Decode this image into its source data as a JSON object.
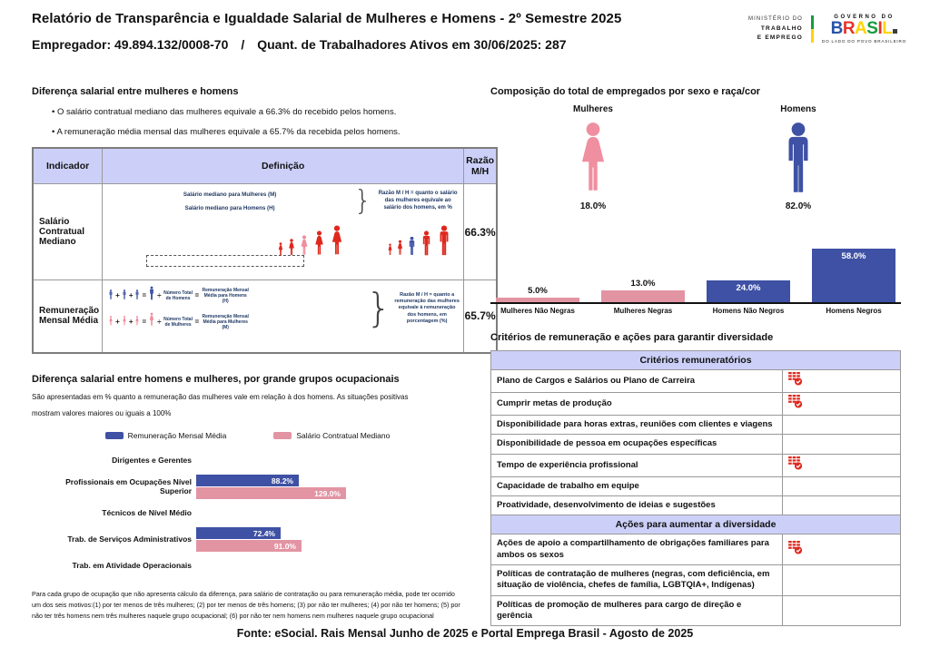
{
  "header": {
    "title_line1": "Relatório de Transparência e Igualdade Salarial de Mulheres e Homens - 2º Semestre 2025",
    "title_line2": "Empregador: 49.894.132/0008-70 / Quant. de Trabalhadores Ativos em 30/06/2025: 287",
    "ministry_line1": "MINISTÉRIO DO",
    "ministry_line2": "TRABALHO",
    "ministry_line3": "E EMPREGO",
    "gov_top": "GOVERNO DO",
    "gov_name": "BRASIL",
    "gov_tagline": "DO LADO DO POVO BRASILEIRO"
  },
  "palette": {
    "blue": "#3E51A4",
    "pink_bar": "#E294A3",
    "pink_icon": "#EF8FA0",
    "red": "#DF281E",
    "navy": "#1F3864",
    "lavender": "#CCD0F8",
    "gov_colors": [
      "#2853A8",
      "#E6332A",
      "#FFD400",
      "#169B3E",
      "#E6332A",
      "#FFD400"
    ]
  },
  "salary_gap": {
    "title": "Diferença salarial entre mulheres e homens",
    "bullets": [
      "O salário contratual mediano das mulheres equivale a 66.3% do recebido pelos homens.",
      "A remuneração média mensal das mulheres equivale a 65.7% da recebida pelos homens."
    ],
    "table": {
      "headers": [
        "Indicador",
        "Definição",
        "Razão M/H"
      ],
      "rows": [
        {
          "indicator": "Salário Contratual Mediano",
          "def_line1": "Salário mediano para Mulheres (M)",
          "def_line2": "Salário mediano para Homens (H)",
          "note": "Razão M / H = quanto o salário das mulheres equivale ao salário dos homens, em %",
          "ratio": "66.3%"
        },
        {
          "indicator": "Remuneração Mensal Média",
          "num_label_men": "Número Total de Homens",
          "result_men": "Remuneração Mensal Média para Homens (H)",
          "num_label_women": "Número Total de Mulheres",
          "result_women": "Remuneração Mensal Média para Mulheres (M)",
          "note": "Razão M / H = quanto a remuneração das mulheres equivale à remuneração dos homens, em porcentagem (%)",
          "ratio": "65.7%"
        }
      ]
    }
  },
  "composition": {
    "title": "Composição do total de empregados por sexo e raça/cor",
    "female_label": "Mulheres",
    "female_pct": "18.0%",
    "male_label": "Homens",
    "male_pct": "82.0%"
  },
  "occupational": {
    "title": "Diferença salarial entre homens e mulheres, por grande grupos ocupacionais",
    "subtitle_line1": "São apresentadas em % quanto a remuneração das mulheres vale em relação à dos homens. As situações positivas",
    "subtitle_line2": "mostram valores maiores ou iguais a 100%",
    "footnote": "Para cada grupo de ocupação que não apresenta cálculo da diferença, para salário de contratação ou para remuneração média, pode ter ocorrido um dos seis motivos:(1) por ter menos de três mulheres; (2) por ter menos de três homens; (3) por não ter mulheres; (4) por não ter homens; (5) por não ter três homens nem três mulheres naquele grupo ocupacional; (6) por não ter nem homens nem mulheres naquele grupo ocupacional"
  },
  "criteria": {
    "title": "Critérios de remuneração e ações para garantir diversidade",
    "sections": [
      {
        "title": "Critérios remuneratórios",
        "rows": [
          {
            "label": "Plano de Cargos e Salários ou Plano de Carreira",
            "checked": true
          },
          {
            "label": "Cumprir metas de produção",
            "checked": true
          },
          {
            "label": "Disponibilidade para horas extras, reuniões com clientes e viagens",
            "checked": false
          },
          {
            "label": "Disponibilidade de pessoa em ocupações específicas",
            "checked": false
          },
          {
            "label": "Tempo de experiência profissional",
            "checked": true
          },
          {
            "label": "Capacidade de trabalho em equipe",
            "checked": false
          },
          {
            "label": "Proatividade, desenvolvimento de ideias e sugestões",
            "checked": false
          }
        ]
      },
      {
        "title": "Ações para aumentar a diversidade",
        "rows": [
          {
            "label": "Ações de apoio a compartilhamento de obrigações familiares para ambos os sexos",
            "checked": true
          },
          {
            "label": "Políticas de contratação de mulheres (negras, com deficiência, em situação de violência, chefes de família, LGBTQIA+, Indígenas)",
            "checked": false
          },
          {
            "label": "Políticas de promoção de mulheres para cargo de direção e gerência",
            "checked": false
          }
        ]
      }
    ]
  },
  "chart_data": [
    {
      "type": "bar",
      "title": "Composição do total de empregados por sexo e raça/cor",
      "categories": [
        "Mulheres Não Negras",
        "Mulheres Negras",
        "Homens Não Negros",
        "Homens Negros"
      ],
      "values": [
        5.0,
        13.0,
        24.0,
        58.0
      ],
      "unit": "%",
      "bar_colors": [
        "pink",
        "pink",
        "blue",
        "blue"
      ],
      "gender_totals": {
        "Mulheres": 18.0,
        "Homens": 82.0
      },
      "ylim": [
        0,
        60
      ],
      "grid": false,
      "legend": "none"
    },
    {
      "type": "bar",
      "orientation": "horizontal",
      "title": "Diferença salarial entre homens e mulheres, por grande grupos ocupacionais",
      "categories": [
        "Dirigentes e Gerentes",
        "Profissionais em Ocupações Nível Superior",
        "Técnicos de Nível Médio",
        "Trab. de Serviços Administrativos",
        "Trab. em Atividade Operacionais"
      ],
      "series": [
        {
          "name": "Remuneração Mensal Média",
          "color": "blue",
          "values": [
            null,
            88.2,
            null,
            72.4,
            null
          ]
        },
        {
          "name": "Salário Contratual Mediano",
          "color": "pink",
          "values": [
            null,
            129.0,
            null,
            91.0,
            null
          ]
        }
      ],
      "unit": "%",
      "xlim": [
        0,
        135
      ],
      "grid": false,
      "legend_position": "top"
    }
  ],
  "page": {
    "footer": "Fonte: eSocial. Rais Mensal Junho de 2025 e Portal Emprega Brasil - Agosto de 2025"
  }
}
